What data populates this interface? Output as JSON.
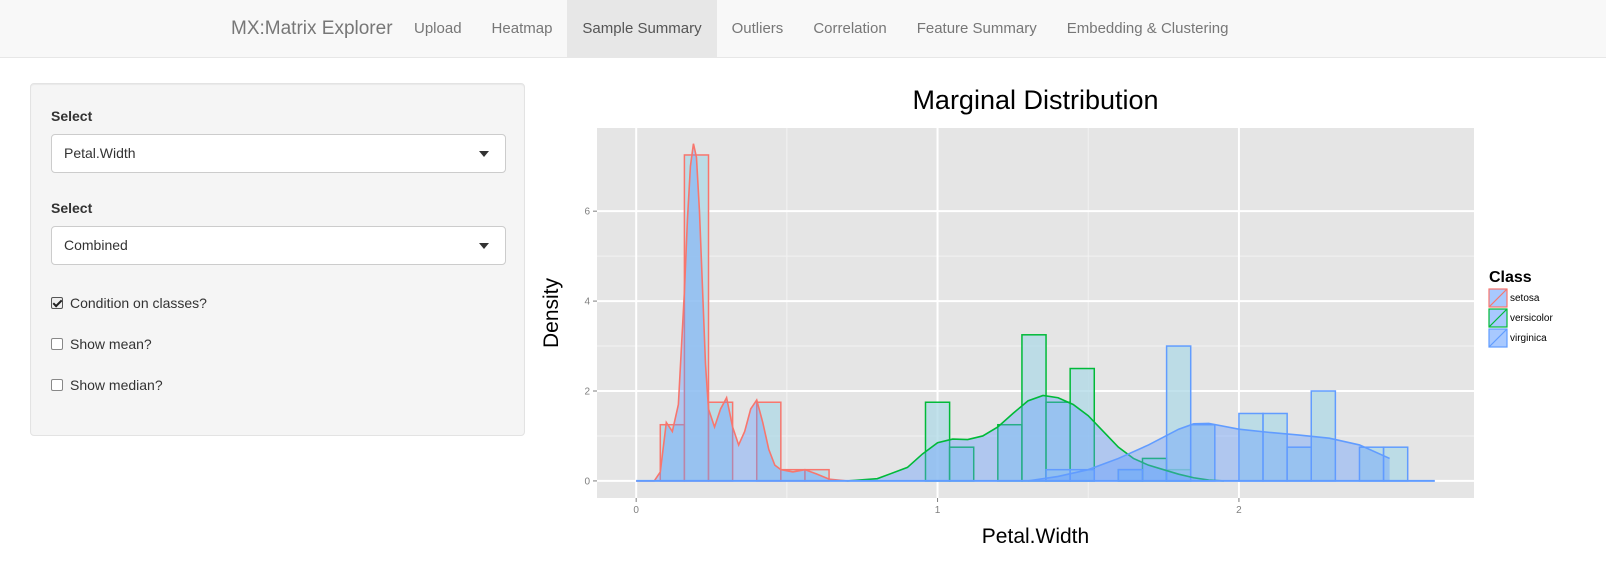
{
  "navbar": {
    "brand": "MX:Matrix Explorer",
    "items": [
      {
        "label": "Upload",
        "active": false
      },
      {
        "label": "Heatmap",
        "active": false
      },
      {
        "label": "Sample Summary",
        "active": true
      },
      {
        "label": "Outliers",
        "active": false
      },
      {
        "label": "Correlation",
        "active": false
      },
      {
        "label": "Feature Summary",
        "active": false
      },
      {
        "label": "Embedding & Clustering",
        "active": false
      }
    ]
  },
  "sidebar": {
    "select1": {
      "label": "Select",
      "value": "Petal.Width"
    },
    "select2": {
      "label": "Select",
      "value": "Combined"
    },
    "checkboxes": [
      {
        "label": "Condition on classes?",
        "checked": true
      },
      {
        "label": "Show mean?",
        "checked": false
      },
      {
        "label": "Show median?",
        "checked": false
      }
    ]
  },
  "colors": {
    "panel_bg": "#e5e5e5",
    "setosa": "#f8766d",
    "versicolor": "#00ba38",
    "virginica": "#619cff",
    "hist_fill": "#add8e6"
  },
  "chart_data": {
    "type": "histogram",
    "title": "Marginal Distribution",
    "xlabel": "Petal.Width",
    "ylabel": "Density",
    "xlim": [
      -0.13,
      2.78
    ],
    "ylim": [
      -0.38,
      7.85
    ],
    "xticks": [
      0,
      1,
      2
    ],
    "yticks": [
      0,
      2,
      4,
      6
    ],
    "grid": true,
    "bin_width": 0.08,
    "legend": {
      "title": "Class",
      "position": "right",
      "entries": [
        "setosa",
        "versicolor",
        "virginica"
      ]
    },
    "series": [
      {
        "name": "setosa",
        "bins_left": [
          0.08,
          0.16,
          0.24,
          0.32,
          0.4,
          0.48,
          0.56
        ],
        "density": [
          1.25,
          7.25,
          1.75,
          0,
          1.75,
          0.25,
          0.25
        ],
        "kde_x": [
          0.0,
          0.06,
          0.08,
          0.1,
          0.12,
          0.14,
          0.16,
          0.17,
          0.18,
          0.19,
          0.2,
          0.21,
          0.22,
          0.23,
          0.24,
          0.26,
          0.28,
          0.3,
          0.32,
          0.34,
          0.36,
          0.38,
          0.4,
          0.42,
          0.44,
          0.46,
          0.48,
          0.52,
          0.56,
          0.6,
          0.64,
          0.7
        ],
        "kde_y": [
          0,
          0,
          0.2,
          1.3,
          1.1,
          1.7,
          4.2,
          5.8,
          7.0,
          7.5,
          7.2,
          6.0,
          4.3,
          2.6,
          1.6,
          1.2,
          1.6,
          1.85,
          1.2,
          0.8,
          1.1,
          1.6,
          1.8,
          1.3,
          0.7,
          0.35,
          0.25,
          0.2,
          0.25,
          0.15,
          0.04,
          0
        ]
      },
      {
        "name": "versicolor",
        "bins_left": [
          0.96,
          1.04,
          1.12,
          1.2,
          1.28,
          1.36,
          1.44,
          1.52,
          1.6,
          1.68,
          1.76
        ],
        "density": [
          1.75,
          0.75,
          0,
          1.25,
          3.25,
          1.75,
          2.5,
          0,
          0.25,
          0.5,
          0.25
        ],
        "kde_x": [
          0.7,
          0.8,
          0.9,
          0.95,
          1.0,
          1.05,
          1.1,
          1.15,
          1.2,
          1.25,
          1.3,
          1.35,
          1.4,
          1.45,
          1.5,
          1.55,
          1.6,
          1.65,
          1.7,
          1.75,
          1.8,
          1.85,
          1.9,
          1.95
        ],
        "kde_y": [
          0,
          0.05,
          0.3,
          0.6,
          0.85,
          0.93,
          0.92,
          1.0,
          1.2,
          1.5,
          1.78,
          1.9,
          1.85,
          1.7,
          1.45,
          1.1,
          0.75,
          0.5,
          0.35,
          0.25,
          0.15,
          0.07,
          0.02,
          0
        ]
      },
      {
        "name": "virginica",
        "bins_left": [
          1.36,
          1.44,
          1.52,
          1.6,
          1.68,
          1.76,
          1.84,
          1.92,
          2.0,
          2.08,
          2.16,
          2.24,
          2.32,
          2.4,
          2.48
        ],
        "density": [
          0.25,
          0.25,
          0,
          0.25,
          0,
          3.0,
          1.25,
          0,
          1.5,
          1.5,
          0.75,
          2.0,
          0,
          0.75,
          0.75
        ],
        "kde_x": [
          1.3,
          1.4,
          1.5,
          1.6,
          1.7,
          1.8,
          1.85,
          1.9,
          2.0,
          2.1,
          2.2,
          2.3,
          2.4,
          2.5
        ],
        "kde_y": [
          0,
          0.1,
          0.25,
          0.5,
          0.8,
          1.15,
          1.27,
          1.28,
          1.15,
          1.08,
          1.02,
          0.95,
          0.8,
          0.5
        ]
      }
    ]
  }
}
